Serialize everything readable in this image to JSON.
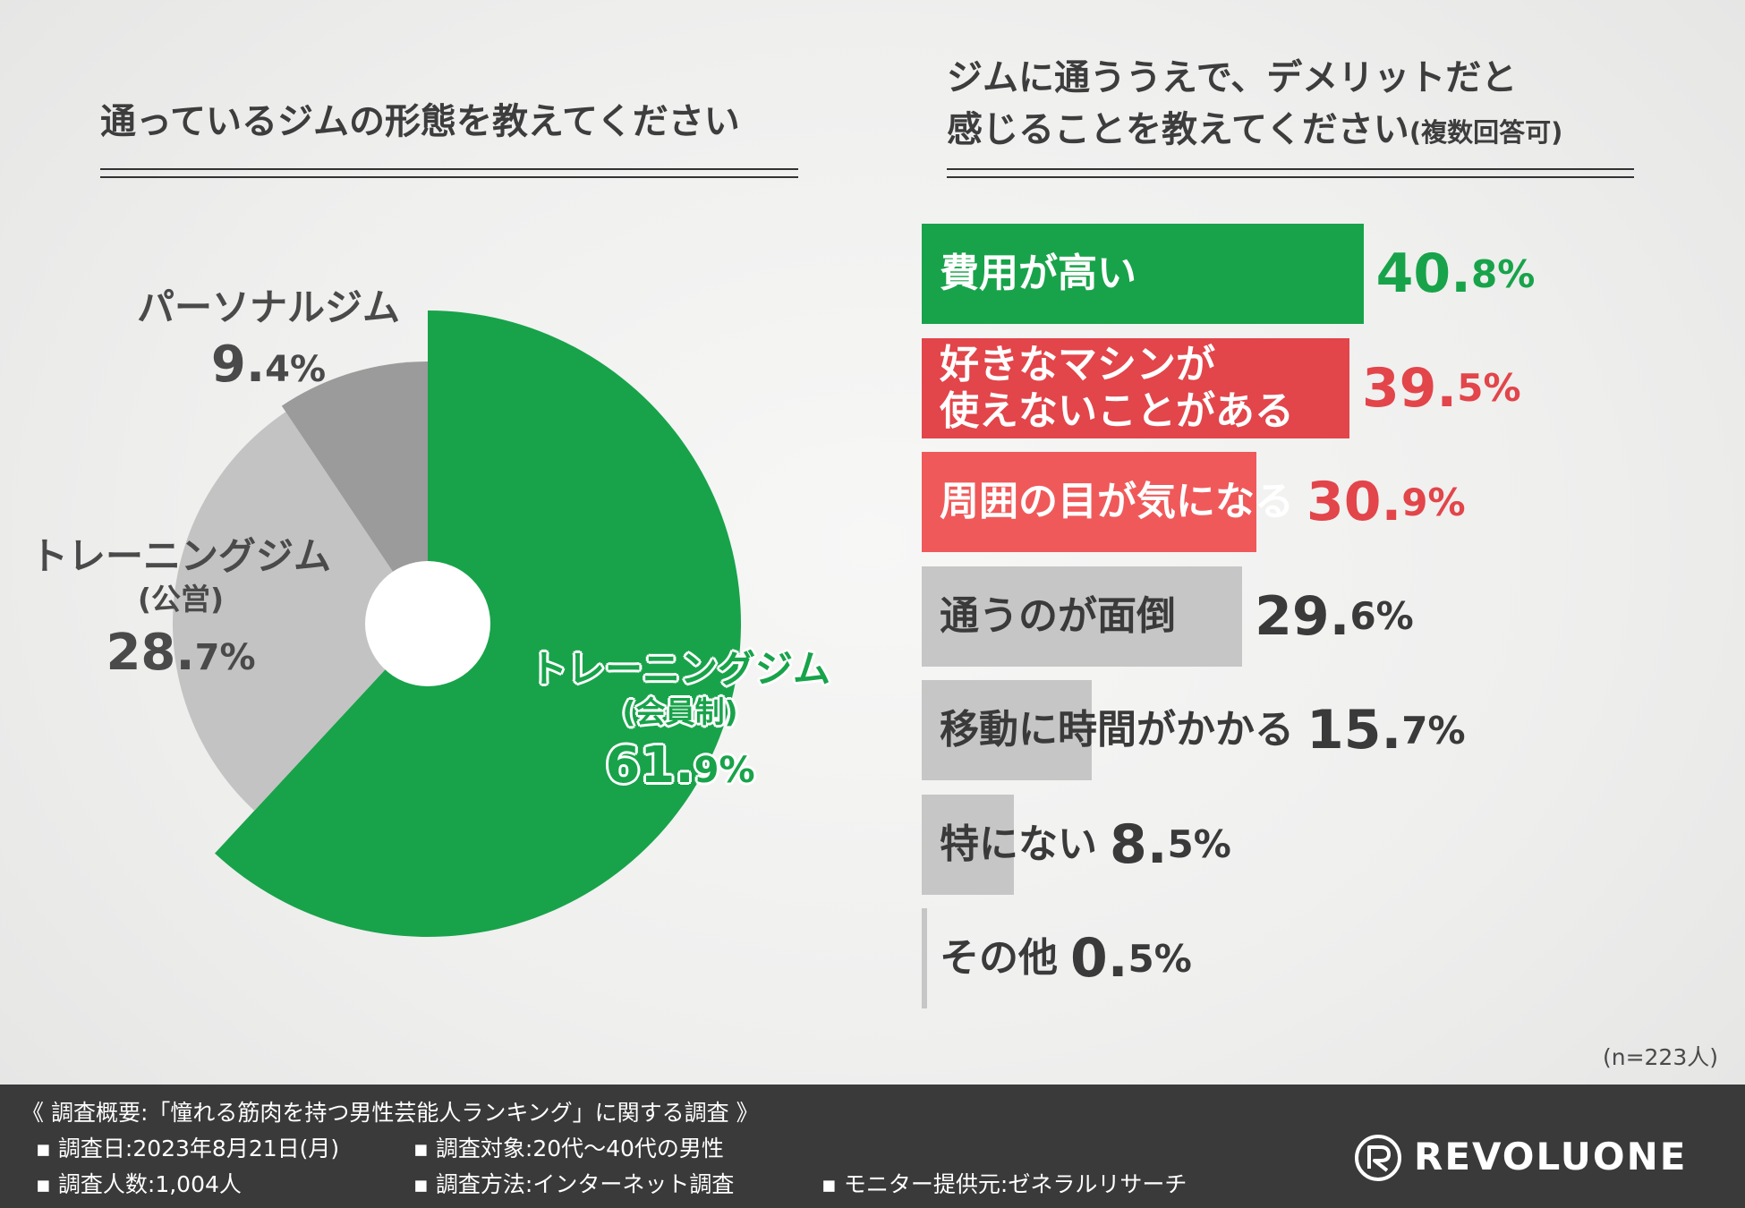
{
  "left_title": "通っているジムの形態を教えてください",
  "right_title_line1": "ジムに通ううえで、デメリットだと",
  "right_title_line2": "感じることを教えてください",
  "right_title_note": "(複数回答可)",
  "sample_size": "(n=223人)",
  "colors": {
    "green": "#18a34a",
    "red_dark": "#e2454a",
    "red_light": "#f0595a",
    "gray_bar": "#c6c6c6",
    "pie_gray_mid": "#9b9b9b",
    "pie_gray_light": "#c3c3c3"
  },
  "chart_data": [
    {
      "type": "pie",
      "segments": [
        {
          "name": "トレーニングジム",
          "sub": "(会員制)",
          "value": 61.9,
          "pct_main": "61.",
          "pct_small": "9%",
          "color": "#18a34a"
        },
        {
          "name": "トレーニングジム",
          "sub": "(公営)",
          "value": 28.7,
          "pct_main": "28.",
          "pct_small": "7%",
          "color": "#c3c3c3"
        },
        {
          "name": "パーソナルジム",
          "sub": "",
          "value": 9.4,
          "pct_main": "9.",
          "pct_small": "4%",
          "color": "#9b9b9b"
        }
      ]
    },
    {
      "type": "bar",
      "orientation": "horizontal",
      "categories": [
        "費用が高い",
        "好きなマシンが使えないことがある",
        "周囲の目が気になる",
        "通うのが面倒",
        "移動に時間がかかる",
        "特にない",
        "その他"
      ],
      "values": [
        40.8,
        39.5,
        30.9,
        29.6,
        15.7,
        8.5,
        0.5
      ],
      "unit": "%",
      "bars": [
        {
          "label_lines": [
            "費用が高い"
          ],
          "value": 40.8,
          "pct_main": "40.",
          "pct_small": "8%",
          "color": "#18a34a",
          "label_style": "light",
          "value_style": "green"
        },
        {
          "label_lines": [
            "好きなマシンが",
            "使えないことがある"
          ],
          "value": 39.5,
          "pct_main": "39.",
          "pct_small": "5%",
          "color": "#e2454a",
          "label_style": "light",
          "value_style": "red"
        },
        {
          "label_lines": [
            "周囲の目が気になる"
          ],
          "value": 30.9,
          "pct_main": "30.",
          "pct_small": "9%",
          "color": "#f0595a",
          "label_style": "light",
          "value_style": "red"
        },
        {
          "label_lines": [
            "通うのが面倒"
          ],
          "value": 29.6,
          "pct_main": "29.",
          "pct_small": "6%",
          "color": "#c6c6c6",
          "label_style": "dark",
          "value_style": "gray"
        },
        {
          "label_lines": [
            "移動に時間がかかる"
          ],
          "value": 15.7,
          "pct_main": "15.",
          "pct_small": "7%",
          "color": "#c6c6c6",
          "label_style": "dark",
          "value_style": "gray"
        },
        {
          "label_lines": [
            "特にない"
          ],
          "value": 8.5,
          "pct_main": "8.",
          "pct_small": "5%",
          "color": "#c6c6c6",
          "label_style": "dark",
          "value_style": "gray"
        },
        {
          "label_lines": [
            "その他"
          ],
          "value": 0.5,
          "pct_main": "0.",
          "pct_small": "5%",
          "color": "#c6c6c6",
          "label_style": "dark",
          "value_style": "gray"
        }
      ]
    }
  ],
  "footer": {
    "title": "《 調査概要:「憧れる筋肉を持つ男性芸能人ランキング」に関する調査 》",
    "date": "▪ 調査日:2023年8月21日(月)",
    "target": "▪ 調査対象:20代〜40代の男性",
    "count": "▪ 調査人数:1,004人",
    "method": "▪ 調査方法:インターネット調査",
    "monitor": "▪ モニター提供元:ゼネラルリサーチ",
    "brand": "REVOLUONE"
  }
}
